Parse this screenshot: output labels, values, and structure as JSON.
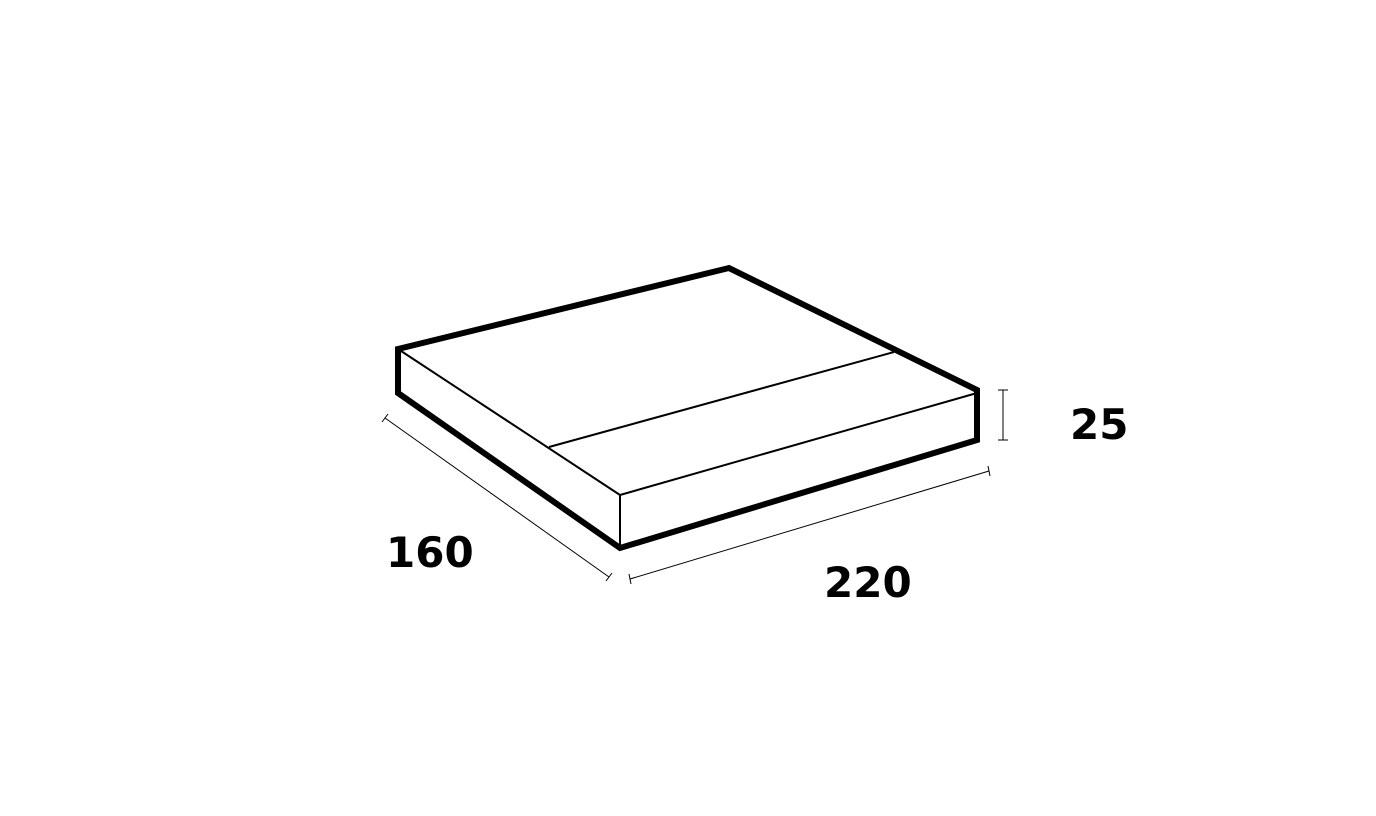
{
  "dimensions": {
    "depth": "160",
    "width": "220",
    "height": "25"
  },
  "colors": {
    "stroke": "#000000",
    "background": "#ffffff"
  }
}
